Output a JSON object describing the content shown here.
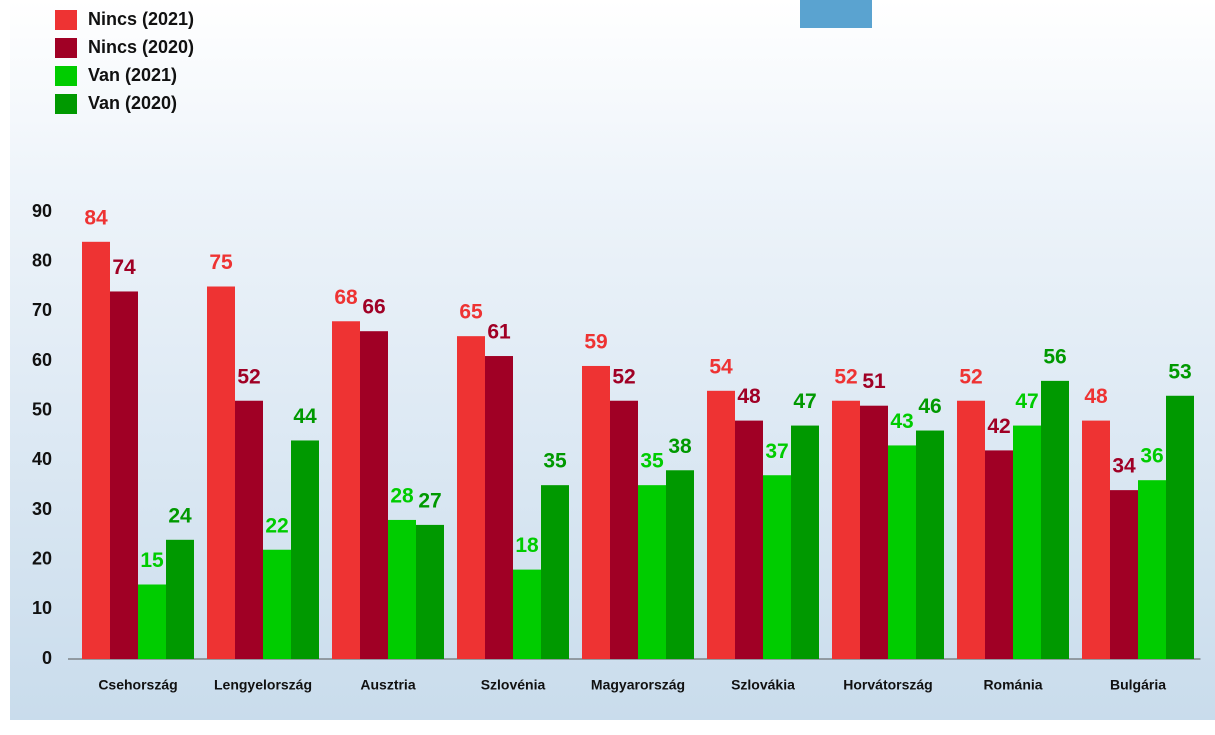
{
  "chart_data": {
    "type": "bar",
    "categories": [
      "Csehország",
      "Lengyelország",
      "Ausztria",
      "Szlovénia",
      "Magyarország",
      "Szlovákia",
      "Horvátország",
      "Románia",
      "Bulgária"
    ],
    "series": [
      {
        "name": "Nincs (2021)",
        "color": "#ee3333",
        "values": [
          84,
          75,
          68,
          65,
          59,
          54,
          52,
          52,
          48
        ]
      },
      {
        "name": "Nincs (2020)",
        "color": "#a00025",
        "values": [
          74,
          52,
          66,
          61,
          52,
          48,
          51,
          42,
          34
        ]
      },
      {
        "name": "Van (2021)",
        "color": "#00cc00",
        "values": [
          15,
          22,
          28,
          18,
          35,
          37,
          43,
          47,
          36
        ]
      },
      {
        "name": "Van (2020)",
        "color": "#009900",
        "values": [
          24,
          44,
          27,
          35,
          38,
          47,
          46,
          56,
          53
        ]
      }
    ],
    "ylim": [
      0,
      90
    ],
    "yticks": [
      0,
      10,
      20,
      30,
      40,
      50,
      60,
      70,
      80,
      90
    ],
    "legend": "top-left"
  }
}
